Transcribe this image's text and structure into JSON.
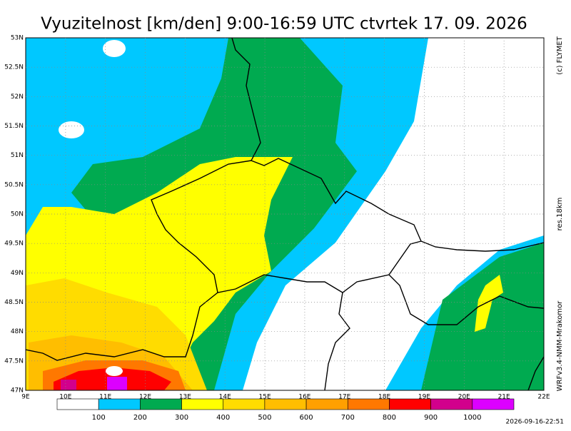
{
  "title": "Vyuzitelnost [km/den] 9:00-16:59 UTC ctvrtek 17. 09. 2026",
  "lat_labels": [
    "53N",
    "52.5N",
    "52N",
    "51.5N",
    "51N",
    "50.5N",
    "50N",
    "49.5N",
    "49N",
    "48.5N",
    "48N",
    "47.5N",
    "47N"
  ],
  "lon_labels": [
    "9E",
    "10E",
    "11E",
    "12E",
    "13E",
    "14E",
    "15E",
    "16E",
    "17E",
    "18E",
    "19E",
    "20E",
    "21E",
    "22E"
  ],
  "legend": {
    "colors": [
      "#ffffff",
      "#00c8ff",
      "#00aa50",
      "#ffff00",
      "#ffdc00",
      "#ffbe00",
      "#ffa000",
      "#ff7800",
      "#ff0000",
      "#d2008c",
      "#dc00ff"
    ],
    "labels": [
      "100",
      "200",
      "300",
      "400",
      "500",
      "600",
      "700",
      "800",
      "900",
      "1000"
    ]
  },
  "credits": {
    "copyright": "(c) FLYMET",
    "resolution": "res.18km",
    "model": "WRFv3.4-NMM-Mrakomor",
    "timestamp": "2026-09-16-22:51"
  }
}
